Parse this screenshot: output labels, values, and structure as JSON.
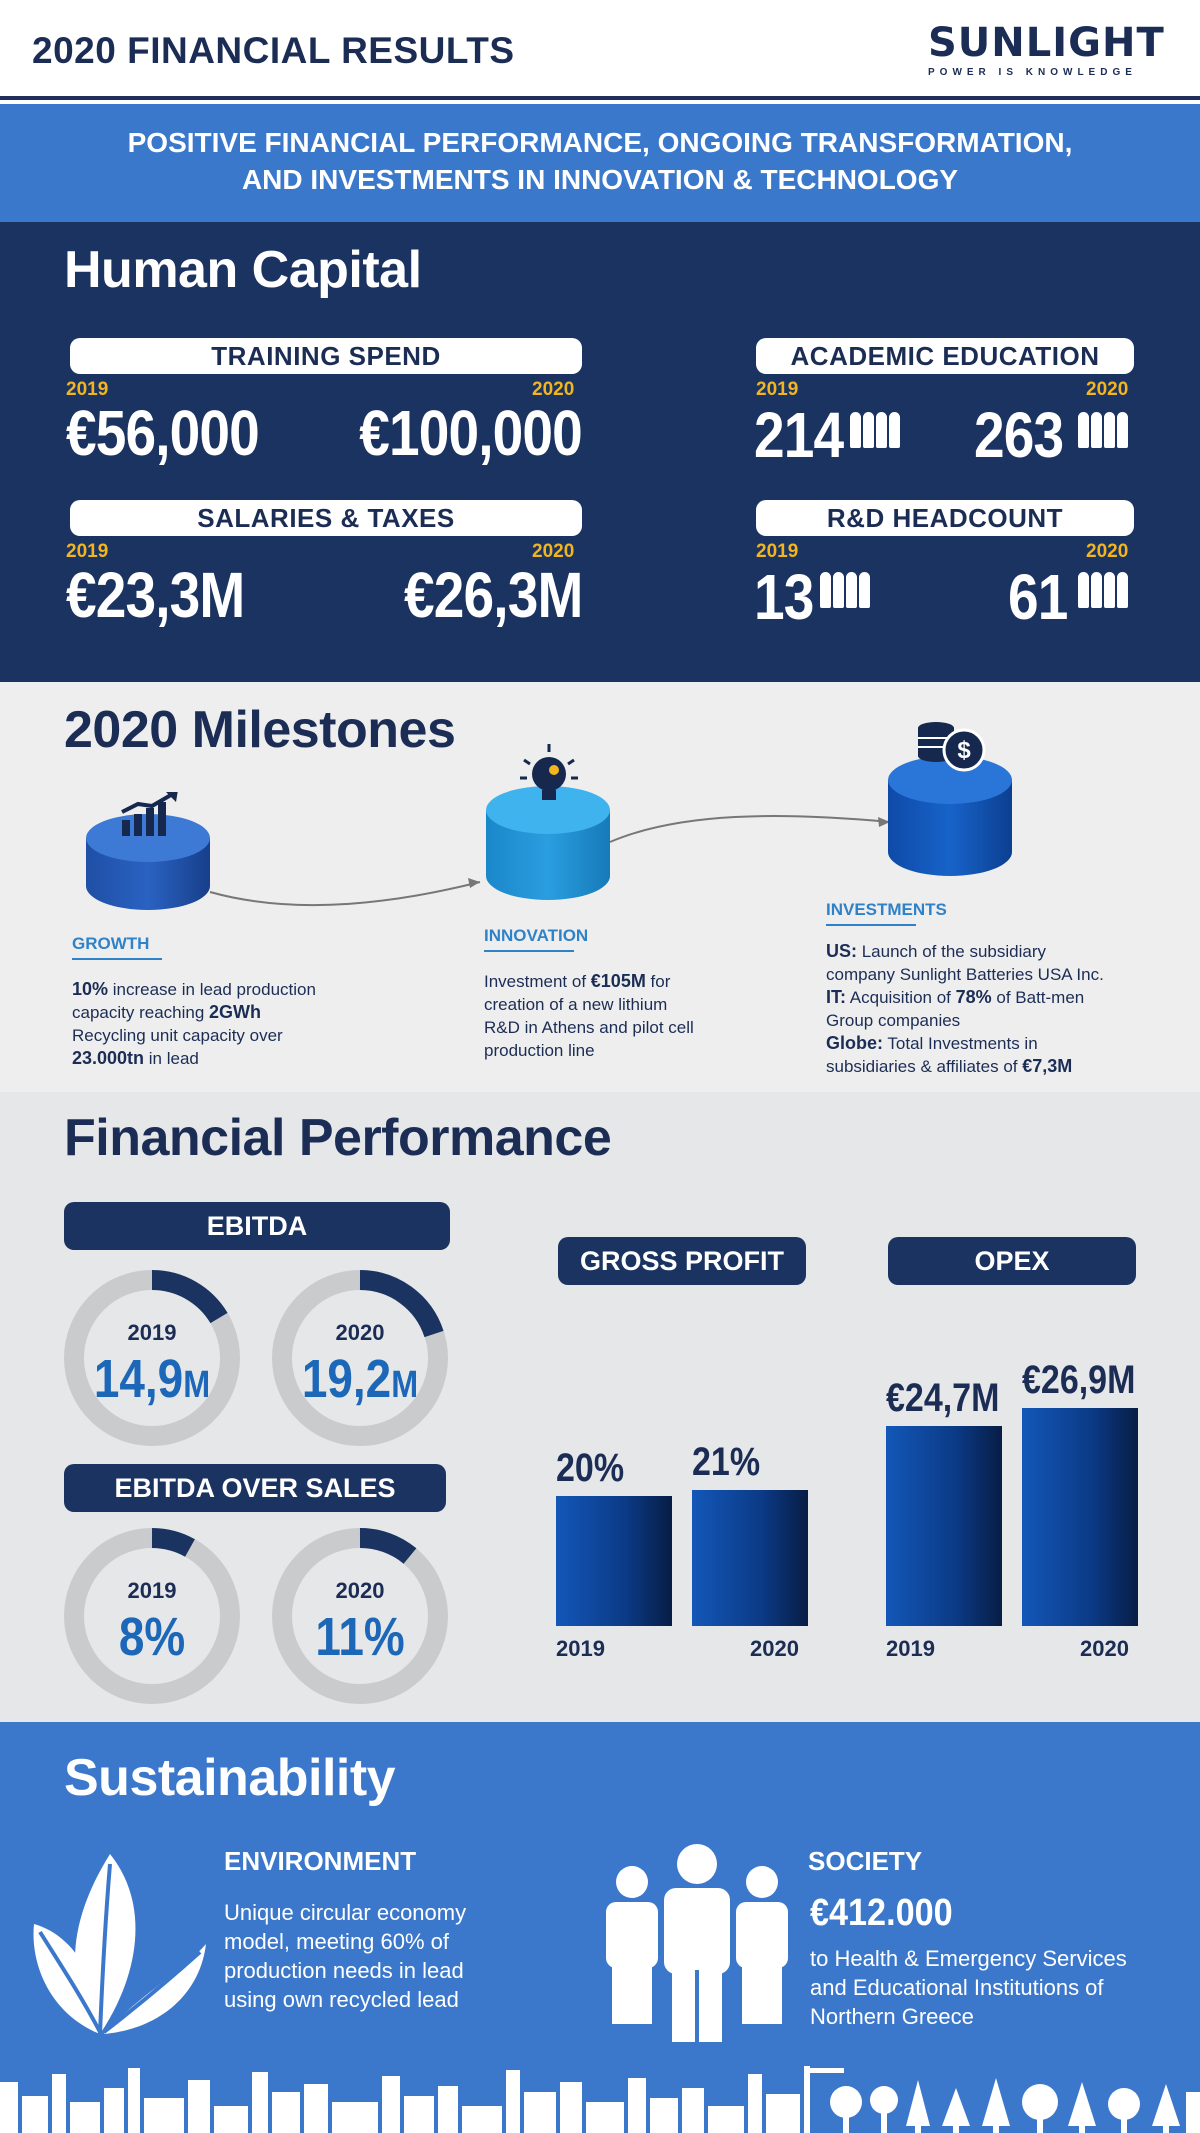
{
  "header": {
    "title": "2020 FINANCIAL RESULTS",
    "logo_word": "SUNLIGHT",
    "logo_tagline": "POWER IS KNOWLEDGE"
  },
  "banner": {
    "line1": "POSITIVE FINANCIAL PERFORMANCE, ONGOING TRANSFORMATION,",
    "line2": "AND INVESTMENTS IN INNOVATION & TECHNOLOGY"
  },
  "human_capital": {
    "title": "Human Capital",
    "training": {
      "label": "TRAINING SPEND",
      "year_a": "2019",
      "value_a": "€56,000",
      "year_b": "2020",
      "value_b": "€100,000"
    },
    "salaries": {
      "label": "SALARIES & TAXES",
      "year_a": "2019",
      "value_a": "€23,3M",
      "year_b": "2020",
      "value_b": "€26,3M"
    },
    "academic": {
      "label": "ACADEMIC EDUCATION",
      "year_a": "2019",
      "value_a": "214",
      "year_b": "2020",
      "value_b": "263"
    },
    "rnd": {
      "label": "R&D HEADCOUNT",
      "year_a": "2019",
      "value_a": "13",
      "year_b": "2020",
      "value_b": "61"
    }
  },
  "milestones": {
    "title": "2020 Milestones",
    "growth": {
      "label": "GROWTH",
      "l1_bold": "10%",
      "l1_rest": " increase in lead production",
      "l2_rest": "capacity reaching ",
      "l2_bold": "2GWh",
      "l3": "Recycling unit capacity over",
      "l4_bold": "23.000tn",
      "l4_rest": " in lead"
    },
    "innovation": {
      "label": "INNOVATION",
      "l1_rest": "Investment of ",
      "l1_bold": "€105M",
      "l1_tail": " for",
      "l2": "creation of a new lithium",
      "l3": "R&D in Athens and pilot cell",
      "l4": "production line"
    },
    "investments": {
      "label": "INVESTMENTS",
      "us_bold": "US:",
      "us_rest": " Launch of the subsidiary",
      "us_l2": "company Sunlight Batteries USA Inc.",
      "it_bold": "IT:",
      "it_rest": " Acquisition of ",
      "it_pct": "78%",
      "it_tail": " of Batt-men",
      "it_l2": "Group companies",
      "globe_bold": "Globe:",
      "globe_rest": " Total Investments in",
      "globe_l2": "subsidiaries & affiliates of ",
      "globe_amount": "€7,3M"
    }
  },
  "financial": {
    "title": "Financial Performance",
    "ebitda": {
      "label": "EBITDA",
      "items": [
        {
          "year": "2019",
          "value": "14,9",
          "unit": "M"
        },
        {
          "year": "2020",
          "value": "19,2",
          "unit": "M"
        }
      ]
    },
    "ebitda_over_sales": {
      "label": "EBITDA OVER SALES",
      "items": [
        {
          "year": "2019",
          "value": "8%"
        },
        {
          "year": "2020",
          "value": "11%"
        }
      ]
    },
    "gross_profit_label": "GROSS PROFIT",
    "opex_label": "OPEX"
  },
  "chart_data": [
    {
      "type": "bar",
      "title": "GROSS PROFIT",
      "categories": [
        "2019",
        "2020"
      ],
      "values": [
        20,
        21
      ],
      "value_labels": [
        "20%",
        "21%"
      ]
    },
    {
      "type": "bar",
      "title": "OPEX",
      "categories": [
        "2019",
        "2020"
      ],
      "values": [
        24.7,
        26.9
      ],
      "value_labels": [
        "€24,7M",
        "€26,9M"
      ]
    }
  ],
  "sustainability": {
    "title": "Sustainability",
    "environment": {
      "label": "ENVIRONMENT",
      "l1": "Unique circular economy",
      "l2": "model, meeting 60% of",
      "l3": "production needs in lead",
      "l4": "using own recycled lead"
    },
    "society": {
      "label": "SOCIETY",
      "amount": "€412.000",
      "l1": "to Health & Emergency Services",
      "l2": "and Educational Institutions of",
      "l3": "Northern Greece"
    }
  },
  "colors": {
    "navy": "#1b3360",
    "blue": "#3a78cc",
    "gold": "#f2b51e",
    "accent": "#2f82c8"
  }
}
